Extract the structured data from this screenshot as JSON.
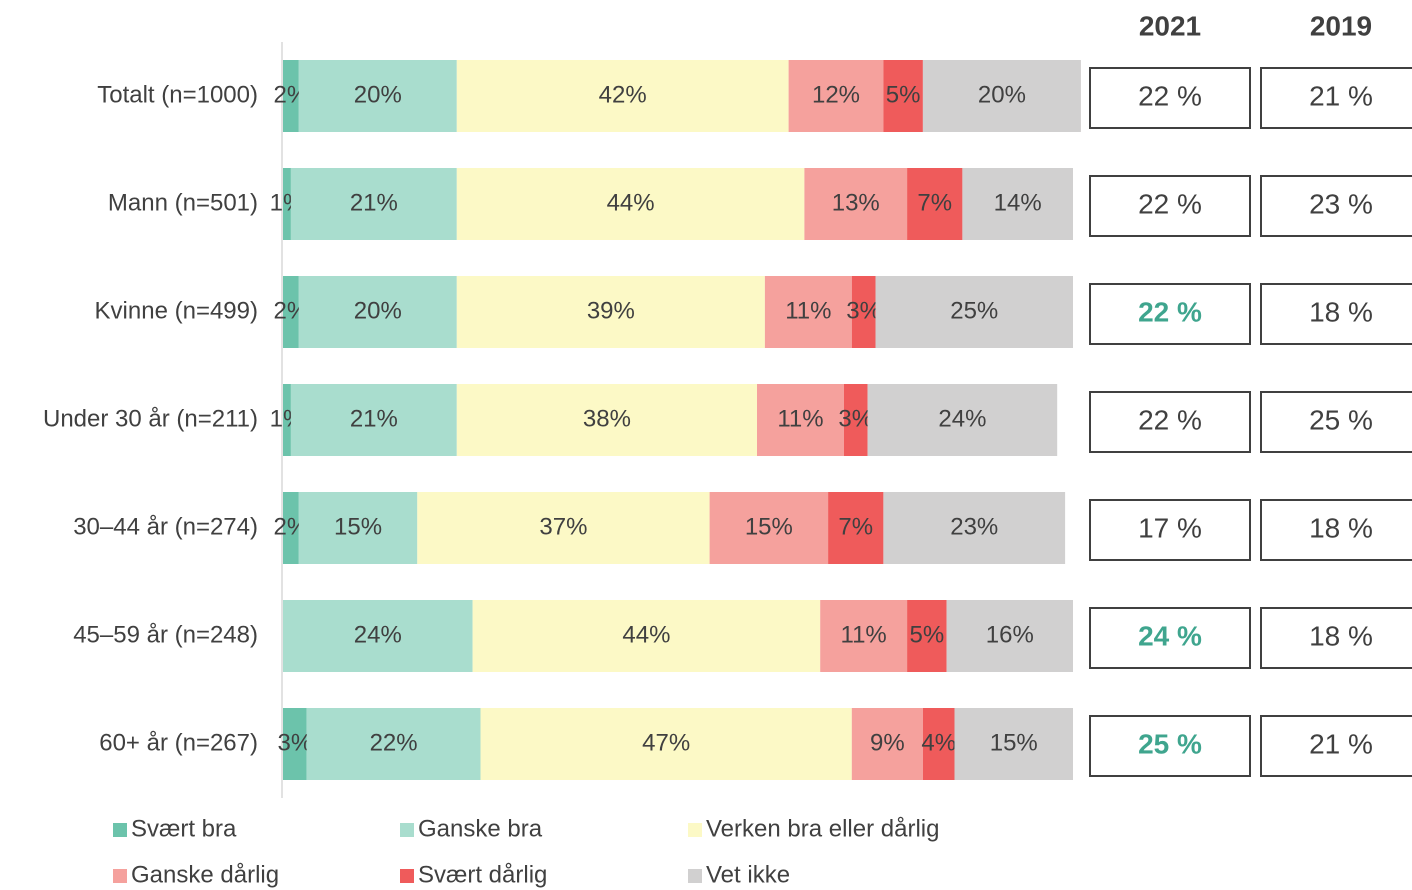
{
  "chart_data": {
    "type": "stacked-barh",
    "categories": [
      "Totalt (n=1000)",
      "Mann (n=501)",
      "Kvinne (n=499)",
      "Under 30 år (n=211)",
      "30–44 år (n=274)",
      "45–59 år (n=248)",
      "60+ år (n=267)"
    ],
    "xlim": [
      0,
      100
    ],
    "series": [
      {
        "name": "Svært bra",
        "color": "#6cc3ab",
        "values": [
          2,
          1,
          2,
          1,
          2,
          0,
          3
        ],
        "value_labels": [
          "2%",
          "1%",
          "2%",
          "1%",
          "2%",
          null,
          "3%"
        ]
      },
      {
        "name": "Ganske bra",
        "color": "#a9ddce",
        "values": [
          20,
          21,
          20,
          21,
          15,
          24,
          22
        ],
        "value_labels": [
          "20%",
          "21%",
          "20%",
          "21%",
          "15%",
          "24%",
          "22%"
        ]
      },
      {
        "name": "Verken bra eller dårlig",
        "color": "#fcf9c6",
        "values": [
          42,
          44,
          39,
          38,
          37,
          44,
          47
        ],
        "value_labels": [
          "42%",
          "44%",
          "39%",
          "38%",
          "37%",
          "44%",
          "47%"
        ]
      },
      {
        "name": "Ganske dårlig",
        "color": "#f5a19d",
        "values": [
          12,
          13,
          11,
          11,
          15,
          11,
          9
        ],
        "value_labels": [
          "12%",
          "13%",
          "11%",
          "11%",
          "15%",
          "11%",
          "9%"
        ]
      },
      {
        "name": "Svært dårlig",
        "color": "#ef5b5b",
        "values": [
          5,
          7,
          3,
          3,
          7,
          5,
          4
        ],
        "value_labels": [
          "5%",
          "7%",
          "3%",
          "3%",
          "7%",
          "5%",
          "4%"
        ]
      },
      {
        "name": "Vet ikke",
        "color": "#d1d0d0",
        "values": [
          20,
          14,
          25,
          24,
          23,
          16,
          15
        ],
        "value_labels": [
          "20%",
          "14%",
          "25%",
          "24%",
          "23%",
          "16%",
          "15%"
        ]
      }
    ],
    "table": {
      "headers": [
        "2021",
        "2019"
      ],
      "rows": [
        [
          "22 %",
          "21 %"
        ],
        [
          "22 %",
          "23 %"
        ],
        [
          "22 %",
          "18 %"
        ],
        [
          "22 %",
          "25 %"
        ],
        [
          "17 %",
          "18 %"
        ],
        [
          "24 %",
          "18 %"
        ],
        [
          "25 %",
          "21 %"
        ]
      ],
      "highlight_color": "#3fa58e",
      "highlighted": [
        [
          false,
          false
        ],
        [
          false,
          false
        ],
        [
          true,
          false
        ],
        [
          false,
          false
        ],
        [
          false,
          false
        ],
        [
          true,
          false
        ],
        [
          true,
          false
        ]
      ]
    }
  }
}
